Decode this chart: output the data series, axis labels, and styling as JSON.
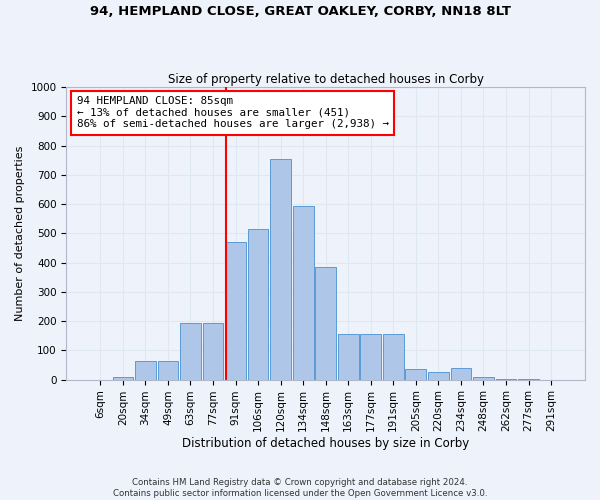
{
  "title1": "94, HEMPLAND CLOSE, GREAT OAKLEY, CORBY, NN18 8LT",
  "title2": "Size of property relative to detached houses in Corby",
  "xlabel": "Distribution of detached houses by size in Corby",
  "ylabel": "Number of detached properties",
  "footer1": "Contains HM Land Registry data © Crown copyright and database right 2024.",
  "footer2": "Contains public sector information licensed under the Open Government Licence v3.0.",
  "categories": [
    "6sqm",
    "20sqm",
    "34sqm",
    "49sqm",
    "63sqm",
    "77sqm",
    "91sqm",
    "106sqm",
    "120sqm",
    "134sqm",
    "148sqm",
    "163sqm",
    "177sqm",
    "191sqm",
    "205sqm",
    "220sqm",
    "234sqm",
    "248sqm",
    "262sqm",
    "277sqm",
    "291sqm"
  ],
  "values": [
    0,
    10,
    62,
    65,
    195,
    195,
    470,
    515,
    755,
    595,
    385,
    155,
    155,
    155,
    35,
    25,
    40,
    10,
    3,
    1,
    0
  ],
  "bar_color": "#aec6e8",
  "bar_edge_color": "#5b9bd5",
  "vline_color": "red",
  "annotation_text": "94 HEMPLAND CLOSE: 85sqm\n← 13% of detached houses are smaller (451)\n86% of semi-detached houses are larger (2,938) →",
  "annotation_box_color": "white",
  "annotation_box_edge": "red",
  "grid_color": "#dde8f0",
  "background_color": "#eef2fb",
  "ylim": [
    0,
    1000
  ],
  "yticks": [
    0,
    100,
    200,
    300,
    400,
    500,
    600,
    700,
    800,
    900,
    1000
  ]
}
